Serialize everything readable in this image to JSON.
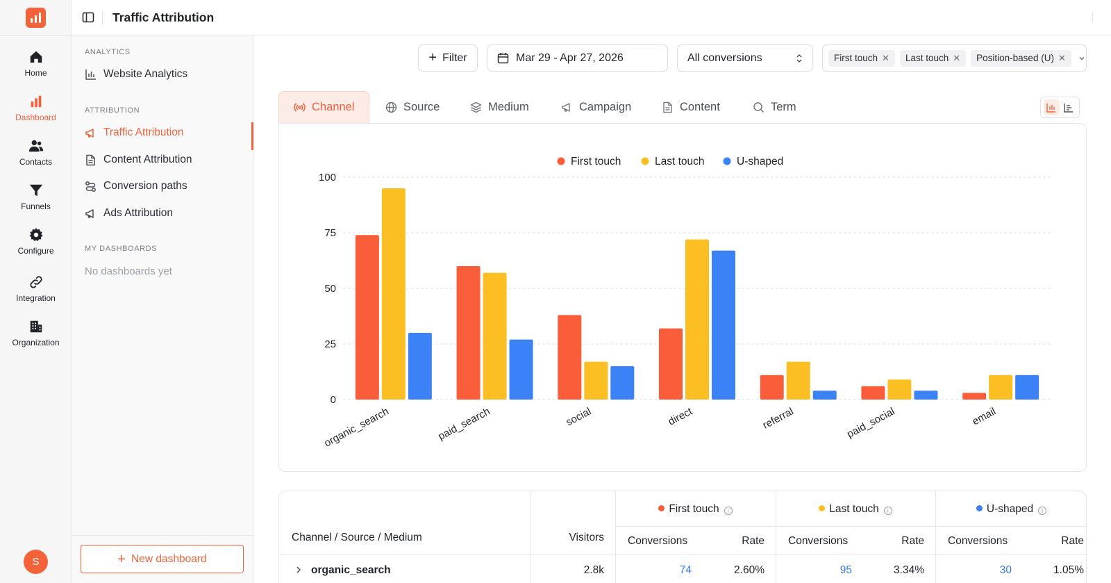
{
  "topbar": {
    "title": "Traffic Attribution"
  },
  "rail": {
    "items": [
      {
        "label": "Home",
        "icon": "home-icon"
      },
      {
        "label": "Dashboard",
        "icon": "bar-chart-icon",
        "active": true
      },
      {
        "label": "Contacts",
        "icon": "users-icon"
      },
      {
        "label": "Funnels",
        "icon": "funnel-icon"
      },
      {
        "label": "Configure",
        "icon": "gear-icon"
      },
      {
        "label": "Integration",
        "icon": "link-icon"
      },
      {
        "label": "Organization",
        "icon": "building-icon"
      }
    ],
    "avatar_initial": "S"
  },
  "sidebar": {
    "analytics_section": "ANALYTICS",
    "analytics_items": [
      {
        "label": "Website Analytics",
        "icon": "bar-chart-icon"
      }
    ],
    "attribution_section": "ATTRIBUTION",
    "attribution_items": [
      {
        "label": "Traffic Attribution",
        "icon": "megaphone-icon",
        "active": true
      },
      {
        "label": "Content Attribution",
        "icon": "document-icon"
      },
      {
        "label": "Conversion paths",
        "icon": "route-icon"
      },
      {
        "label": "Ads Attribution",
        "icon": "megaphone-icon"
      }
    ],
    "dashboards_section": "MY DASHBOARDS",
    "dashboards_empty": "No dashboards yet",
    "new_dashboard_label": "New dashboard"
  },
  "filters": {
    "filter_label": "Filter",
    "date_range": "Mar 29 - Apr 27, 2026",
    "conversion_select": "All conversions",
    "models": [
      "First touch",
      "Last touch",
      "Position-based (U)"
    ]
  },
  "tabs": [
    {
      "label": "Channel",
      "icon": "broadcast-icon",
      "active": true
    },
    {
      "label": "Source",
      "icon": "globe-icon"
    },
    {
      "label": "Medium",
      "icon": "layers-icon"
    },
    {
      "label": "Campaign",
      "icon": "megaphone-icon"
    },
    {
      "label": "Content",
      "icon": "document-icon"
    },
    {
      "label": "Term",
      "icon": "search-icon"
    }
  ],
  "colors": {
    "accent": "#f4623a",
    "first_touch": "#f95d3a",
    "last_touch": "#fbbf24",
    "u_shaped": "#3b82f6"
  },
  "chart_data": {
    "type": "bar",
    "categories": [
      "organic_search",
      "paid_search",
      "social",
      "direct",
      "referral",
      "paid_social",
      "email"
    ],
    "series": [
      {
        "name": "First touch",
        "values": [
          74,
          60,
          38,
          32,
          11,
          6,
          3
        ]
      },
      {
        "name": "Last touch",
        "values": [
          95,
          57,
          17,
          72,
          17,
          9,
          11
        ]
      },
      {
        "name": "U-shaped",
        "values": [
          30,
          27,
          15,
          67,
          4,
          4,
          11
        ]
      }
    ],
    "yticks": [
      "0",
      "25",
      "50",
      "75",
      "100"
    ],
    "ylim": [
      0,
      100
    ],
    "legend": "top-center",
    "grid": true
  },
  "table": {
    "col_dimension": "Channel / Source / Medium",
    "col_visitors": "Visitors",
    "groups": [
      {
        "name": "First touch",
        "conversions_label": "Conversions",
        "rate_label": "Rate"
      },
      {
        "name": "Last touch",
        "conversions_label": "Conversions",
        "rate_label": "Rate"
      },
      {
        "name": "U-shaped",
        "conversions_label": "Conversions",
        "rate_label": "Rate"
      }
    ],
    "rows": [
      {
        "name": "organic_search",
        "visitors": "2.8k",
        "values": [
          {
            "conversions": "74",
            "rate": "2.60%"
          },
          {
            "conversions": "95",
            "rate": "3.34%"
          },
          {
            "conversions": "30",
            "rate": "1.05%"
          }
        ]
      }
    ]
  }
}
